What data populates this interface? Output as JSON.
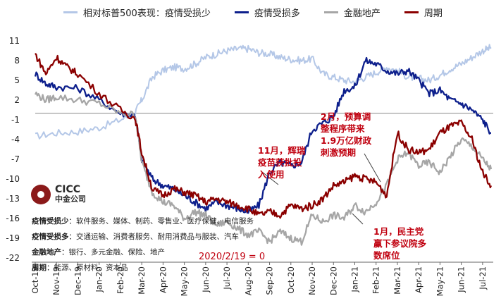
{
  "logo": {
    "brand": "CICC",
    "name": "中金公司"
  },
  "baseline_note": "2020/2/19 = 0",
  "annotations": {
    "nov": "11月，辉瑞\n疫苗获批投\n入使用",
    "feb": "2月，预算调\n整程序带来\n1.9万亿财政\n刺激预期",
    "jan": "1月，民主党\n赢下参议院多\n数席位"
  },
  "notes": [
    {
      "key": "疫情受损少",
      "value": "：软件服务、媒体、制药、零售业、医疗保健、电信服务"
    },
    {
      "key": "疫情受损多",
      "value": "：交通运输、消费者服务、耐用消费品与服装、汽车"
    },
    {
      "key": "金融地产",
      "value": "：银行、多元金融、保险、地产"
    },
    {
      "key": "周期",
      "value": "：能源、原材料、资本品"
    }
  ],
  "chart_data": {
    "type": "line",
    "x_labels": [
      "Oct-19",
      "Nov-19",
      "Dec-19",
      "Jan-20",
      "Feb-20",
      "Mar-20",
      "Apr-20",
      "May-20",
      "Jun-20",
      "Jul-20",
      "Aug-20",
      "Sep-20",
      "Oct-20",
      "Nov-20",
      "Dec-20",
      "Jan-21",
      "Feb-21",
      "Mar-21",
      "Apr-21",
      "May-21",
      "Jun-21",
      "Jul-21"
    ],
    "y_ticks": [
      11,
      8,
      5,
      2,
      -1,
      -4,
      -7,
      -10,
      -13,
      -16,
      -19,
      -22
    ],
    "ylim": [
      -22,
      11
    ],
    "series": [
      {
        "name": "相对标普500表现：疫情受损少",
        "color": "#b4c7e7",
        "points": [
          [
            0,
            -3.5
          ],
          [
            1,
            -3.0
          ],
          [
            2,
            -2.8
          ],
          [
            3,
            -2.2
          ],
          [
            4,
            -1.0
          ],
          [
            4.7,
            0.2
          ],
          [
            5,
            2.0
          ],
          [
            5.5,
            5.5
          ],
          [
            6,
            6.5
          ],
          [
            6.5,
            7.0
          ],
          [
            7,
            6.8
          ],
          [
            7.5,
            7.5
          ],
          [
            8,
            8.5
          ],
          [
            8.5,
            9.0
          ],
          [
            9,
            9.5
          ],
          [
            9.5,
            9.8
          ],
          [
            10,
            9.8
          ],
          [
            10.5,
            9.2
          ],
          [
            11,
            9.0
          ],
          [
            11.5,
            8.5
          ],
          [
            12,
            8.2
          ],
          [
            12.5,
            8.0
          ],
          [
            13,
            8.3
          ],
          [
            13.5,
            6.0
          ],
          [
            14,
            5.5
          ],
          [
            14.5,
            5.0
          ],
          [
            15,
            4.8
          ],
          [
            15.5,
            5.5
          ],
          [
            16,
            6.2
          ],
          [
            16.5,
            7.0
          ],
          [
            17,
            6.5
          ],
          [
            17.5,
            5.5
          ],
          [
            18,
            5.3
          ],
          [
            18.5,
            5.0
          ],
          [
            19,
            5.8
          ],
          [
            19.5,
            6.8
          ],
          [
            20,
            7.5
          ],
          [
            20.5,
            8.5
          ],
          [
            21,
            9.5
          ],
          [
            21.4,
            10.0
          ]
        ]
      },
      {
        "name": "疫情受损多",
        "color": "#0d1f8c",
        "points": [
          [
            0,
            6.0
          ],
          [
            0.5,
            4.5
          ],
          [
            1,
            4.0
          ],
          [
            2,
            3.8
          ],
          [
            3,
            2.0
          ],
          [
            4,
            0.0
          ],
          [
            4.7,
            -0.3
          ],
          [
            5,
            -7.0
          ],
          [
            5.5,
            -10.0
          ],
          [
            6,
            -11.0
          ],
          [
            6.5,
            -11.5
          ],
          [
            7,
            -12.5
          ],
          [
            7.5,
            -13.5
          ],
          [
            8,
            -14.5
          ],
          [
            8.5,
            -13.5
          ],
          [
            9,
            -14.0
          ],
          [
            9.5,
            -14.5
          ],
          [
            10,
            -15.0
          ],
          [
            10.5,
            -14.0
          ],
          [
            11,
            -9.0
          ],
          [
            11.5,
            -7.5
          ],
          [
            12,
            -8.0
          ],
          [
            12.5,
            -7.5
          ],
          [
            13,
            -2.5
          ],
          [
            13.5,
            -1.5
          ],
          [
            14,
            -0.5
          ],
          [
            14.5,
            3.5
          ],
          [
            15,
            4.0
          ],
          [
            15.5,
            8.0
          ],
          [
            16,
            7.5
          ],
          [
            16.5,
            6.5
          ],
          [
            17,
            6.0
          ],
          [
            17.5,
            6.5
          ],
          [
            18,
            5.0
          ],
          [
            18.5,
            3.0
          ],
          [
            19,
            3.5
          ],
          [
            19.5,
            2.0
          ],
          [
            20,
            1.5
          ],
          [
            20.5,
            0.5
          ],
          [
            21,
            -1.0
          ],
          [
            21.4,
            -3.0
          ]
        ]
      },
      {
        "name": "金融地产",
        "color": "#a6a6a6",
        "points": [
          [
            0,
            3.0
          ],
          [
            0.5,
            2.0
          ],
          [
            1,
            2.5
          ],
          [
            2,
            2.0
          ],
          [
            3,
            1.5
          ],
          [
            4,
            0.0
          ],
          [
            4.7,
            -0.2
          ],
          [
            5,
            -7.5
          ],
          [
            5.5,
            -12.0
          ],
          [
            6,
            -13.5
          ],
          [
            6.5,
            -14.0
          ],
          [
            7,
            -16.0
          ],
          [
            7.5,
            -15.0
          ],
          [
            8,
            -15.5
          ],
          [
            8.5,
            -17.0
          ],
          [
            9,
            -16.5
          ],
          [
            9.5,
            -17.5
          ],
          [
            10,
            -18.5
          ],
          [
            10.5,
            -18.0
          ],
          [
            11,
            -19.5
          ],
          [
            11.5,
            -18.0
          ],
          [
            12,
            -19.0
          ],
          [
            12.5,
            -19.5
          ],
          [
            13,
            -15.5
          ],
          [
            13.5,
            -16.5
          ],
          [
            14,
            -15.5
          ],
          [
            14.5,
            -16.0
          ],
          [
            15,
            -14.0
          ],
          [
            15.5,
            -15.0
          ],
          [
            16,
            -13.5
          ],
          [
            16.5,
            -11.0
          ],
          [
            17,
            -7.0
          ],
          [
            17.5,
            -6.0
          ],
          [
            18,
            -8.0
          ],
          [
            18.5,
            -7.5
          ],
          [
            19,
            -9.0
          ],
          [
            19.5,
            -6.5
          ],
          [
            20,
            -4.0
          ],
          [
            20.5,
            -5.0
          ],
          [
            21,
            -7.0
          ],
          [
            21.4,
            -8.5
          ]
        ]
      },
      {
        "name": "周期",
        "color": "#8b0000",
        "points": [
          [
            0,
            9.0
          ],
          [
            0.5,
            6.0
          ],
          [
            1,
            8.5
          ],
          [
            1.5,
            7.0
          ],
          [
            2,
            6.0
          ],
          [
            3,
            3.0
          ],
          [
            4,
            0.5
          ],
          [
            4.7,
            -0.8
          ],
          [
            5,
            -6.0
          ],
          [
            5.5,
            -11.5
          ],
          [
            6,
            -12.5
          ],
          [
            6.5,
            -11.5
          ],
          [
            7,
            -12.0
          ],
          [
            7.5,
            -12.5
          ],
          [
            8,
            -13.5
          ],
          [
            8.5,
            -13.0
          ],
          [
            9,
            -13.5
          ],
          [
            9.5,
            -14.0
          ],
          [
            10,
            -14.5
          ],
          [
            10.5,
            -15.5
          ],
          [
            11,
            -15.0
          ],
          [
            11.5,
            -15.5
          ],
          [
            12,
            -14.0
          ],
          [
            12.5,
            -14.5
          ],
          [
            13,
            -14.0
          ],
          [
            13.5,
            -13.0
          ],
          [
            14,
            -11.0
          ],
          [
            14.5,
            -10.5
          ],
          [
            15,
            -9.5
          ],
          [
            15.5,
            -10.0
          ],
          [
            16,
            -10.5
          ],
          [
            16.5,
            -12.5
          ],
          [
            17,
            -3.0
          ],
          [
            17.5,
            -5.5
          ],
          [
            18,
            -6.0
          ],
          [
            18.5,
            -5.5
          ],
          [
            19,
            -3.0
          ],
          [
            19.5,
            -2.0
          ],
          [
            20,
            -1.5
          ],
          [
            20.5,
            -4.0
          ],
          [
            21,
            -9.0
          ],
          [
            21.4,
            -11.0
          ]
        ]
      }
    ]
  }
}
